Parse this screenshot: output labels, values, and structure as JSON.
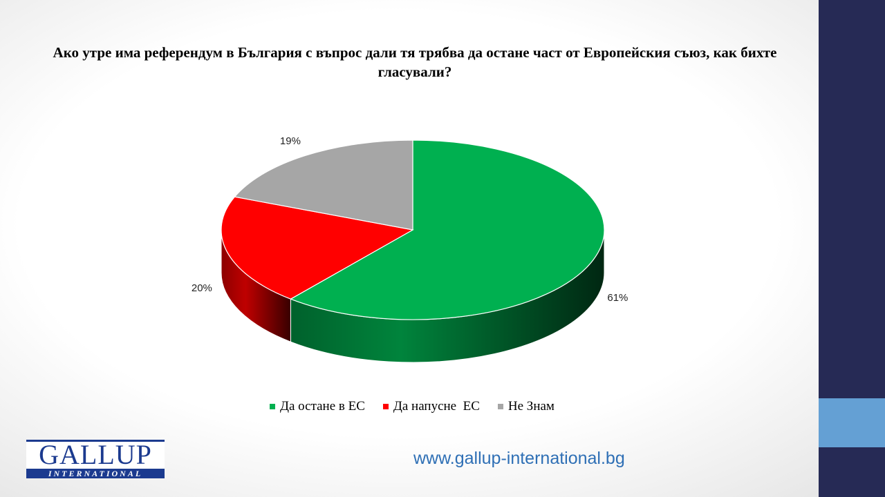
{
  "chart_data": {
    "type": "pie",
    "title": "Ако утре има референдум в България с въпрос дали тя трябва да остане част от Европейския съюз, как бихте гласували?",
    "categories": [
      "Да остане в ЕС",
      "Да напусне  ЕС",
      "Не Знам"
    ],
    "values": [
      61,
      20,
      19
    ],
    "value_labels": [
      "61%",
      "20%",
      "19%"
    ],
    "colors": [
      "#00b050",
      "#ff0000",
      "#a6a6a6"
    ],
    "legend_placement": "bottom",
    "3d": true
  },
  "logo": {
    "top": "GALLUP",
    "bottom": "INTERNATIONAL"
  },
  "footer": {
    "url": "www.gallup-international.bg"
  }
}
